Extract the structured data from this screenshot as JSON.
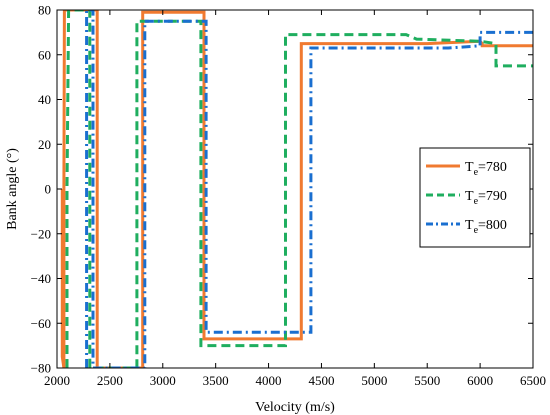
{
  "chart_data": {
    "type": "line",
    "xlabel": "Velocity (m/s)",
    "ylabel": "Bank angle (°)",
    "xlim": [
      2000,
      6500
    ],
    "ylim": [
      -80,
      80
    ],
    "xticks": [
      "2000",
      "2500",
      "3000",
      "3500",
      "4000",
      "4500",
      "5000",
      "5500",
      "6000",
      "6500"
    ],
    "yticks": [
      "80",
      "60",
      "40",
      "20",
      "0",
      "-20",
      "-40",
      "-60",
      "-80"
    ],
    "grid": false,
    "legend_position": "right",
    "series": [
      {
        "name": "T",
        "subscript": "e",
        "suffix": "=780",
        "color": "#f07a30",
        "style": "solid",
        "x": [
          2050,
          2050,
          2065,
          2065,
          2070,
          2080,
          2080,
          2380,
          2380,
          2810,
          2810,
          3390,
          3390,
          4310,
          4310,
          5500,
          6000,
          6020,
          6020,
          6500
        ],
        "y": [
          0,
          -75,
          -80,
          0,
          80,
          80,
          80,
          80,
          -80,
          -80,
          79,
          79,
          -67,
          -67,
          65,
          65,
          66,
          65,
          64,
          64
        ]
      },
      {
        "name": "T",
        "subscript": "e",
        "suffix": "=790",
        "color": "#1fae5f",
        "style": "dashed",
        "x": [
          2095,
          2095,
          2110,
          2150,
          2310,
          2310,
          2755,
          2755,
          3360,
          3360,
          4160,
          4160,
          5300,
          5400,
          6000,
          6150,
          6150,
          6500
        ],
        "y": [
          -80,
          0,
          80,
          80,
          80,
          -80,
          -80,
          75,
          75,
          -70,
          -70,
          69,
          69,
          67,
          66,
          65,
          55,
          55
        ]
      },
      {
        "name": "T",
        "subscript": "e",
        "suffix": "=800",
        "color": "#1a6fd0",
        "style": "dashdot",
        "x": [
          2280,
          2280,
          2340,
          2340,
          2830,
          2830,
          3410,
          3410,
          4400,
          4400,
          5700,
          6000,
          6000,
          6500
        ],
        "y": [
          -80,
          80,
          80,
          -80,
          -80,
          75,
          75,
          -64,
          -64,
          63,
          63,
          64,
          70,
          70
        ]
      }
    ]
  }
}
